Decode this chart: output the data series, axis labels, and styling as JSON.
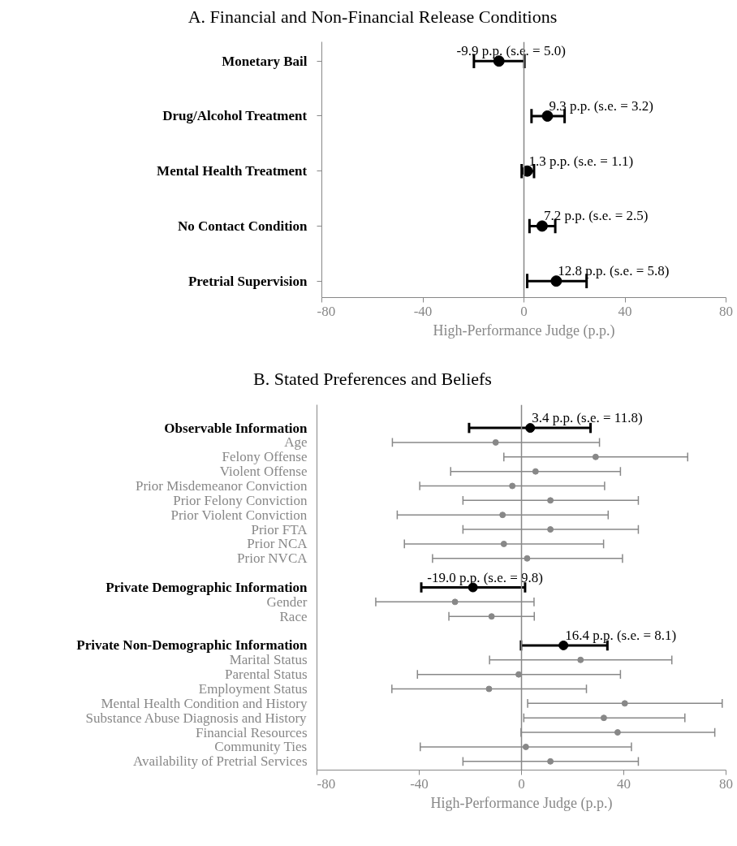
{
  "chart_data": [
    {
      "type": "scatter",
      "title": "A. Financial and Non-Financial Release Conditions",
      "xlabel": "High-Performance Judge (p.p.)",
      "orientation": "horizontal",
      "categories": [
        "Monetary Bail",
        "Drug/Alcohol Treatment",
        "Mental Health Treatment",
        "No Contact Condition",
        "Pretrial Supervision"
      ],
      "xlim": [
        -80,
        80
      ],
      "xticks": [
        -80,
        -40,
        0,
        40,
        80
      ],
      "grid": false,
      "marker": "circle",
      "ref_lines": [
        {
          "axis": "x",
          "value": 0,
          "color": "#888888"
        }
      ],
      "series": [
        {
          "color": "#000000",
          "values": [
            -9.9,
            9.3,
            1.3,
            7.2,
            12.8
          ],
          "errors": [
            [
              -19.8,
              0.2
            ],
            [
              3.0,
              16.1
            ],
            [
              -0.9,
              4.0
            ],
            [
              2.2,
              12.4
            ],
            [
              1.3,
              24.8
            ]
          ],
          "value_labels": [
            "-9.9 p.p. (s.e. = 5.0)",
            "9.3 p.p. (s.e. = 3.2)",
            "1.3 p.p. (s.e. = 1.1)",
            "7.2 p.p. (s.e. = 2.5)",
            "12.8 p.p. (s.e. = 5.8)"
          ]
        }
      ]
    },
    {
      "type": "scatter",
      "title": "B. Stated Preferences and Beliefs",
      "xlabel": "High-Performance Judge (p.p.)",
      "orientation": "horizontal",
      "categories": [
        "Observable Information",
        "Age",
        "Felony Offense",
        "Violent Offense",
        "Prior Misdemeanor Conviction",
        "Prior Felony Conviction",
        "Prior Violent Conviction",
        "Prior FTA",
        "Prior NCA",
        "Prior NVCA",
        null,
        "Private Demographic Information",
        "Gender",
        "Race",
        null,
        "Private Non-Demographic Information",
        "Marital Status",
        "Parental Status",
        "Employment Status",
        "Mental Health Condition and History",
        "Substance Abuse Diagnosis and History",
        "Financial Resources",
        "Community Ties",
        "Availability of Pretrial Services"
      ],
      "xlim": [
        -80,
        80
      ],
      "xticks": [
        -80,
        -40,
        0,
        40,
        80
      ],
      "grid": false,
      "marker": "circle",
      "ref_lines": [
        {
          "axis": "x",
          "value": 0,
          "color": "#888888"
        }
      ],
      "series": [
        {
          "color": "#000000",
          "values": [
            3.4,
            null,
            null,
            null,
            null,
            null,
            null,
            null,
            null,
            null,
            null,
            -19.0,
            null,
            null,
            null,
            16.4,
            null,
            null,
            null,
            null,
            null,
            null,
            null,
            null
          ],
          "errors": [
            [
              -20.5,
              27.0
            ],
            null,
            null,
            null,
            null,
            null,
            null,
            null,
            null,
            null,
            null,
            [
              -39.2,
              1.4
            ],
            null,
            null,
            null,
            [
              -0.2,
              33.6
            ],
            null,
            null,
            null,
            null,
            null,
            null,
            null,
            null
          ],
          "value_labels": [
            "3.4 p.p. (s.e. = 11.8)",
            null,
            null,
            null,
            null,
            null,
            null,
            null,
            null,
            null,
            null,
            "-19.0 p.p. (s.e. = 9.8)",
            null,
            null,
            null,
            "16.4 p.p. (s.e. = 8.1)",
            null,
            null,
            null,
            null,
            null,
            null,
            null,
            null
          ]
        },
        {
          "color": "#888888",
          "values": [
            null,
            -10.1,
            29.0,
            5.5,
            -3.6,
            11.3,
            -7.4,
            11.3,
            -6.9,
            2.2,
            null,
            null,
            -26.0,
            -11.7,
            null,
            null,
            23.1,
            -1.1,
            -12.7,
            40.4,
            32.2,
            37.6,
            1.7,
            11.3
          ],
          "errors": [
            null,
            [
              -50.5,
              30.5
            ],
            [
              -6.9,
              65.0
            ],
            [
              -27.7,
              38.7
            ],
            [
              -39.8,
              32.5
            ],
            [
              -22.9,
              45.7
            ],
            [
              -48.6,
              33.9
            ],
            [
              -22.9,
              45.7
            ],
            [
              -45.8,
              32.1
            ],
            [
              -34.8,
              39.5
            ],
            null,
            null,
            [
              -57.0,
              4.9
            ],
            [
              -28.4,
              5.0
            ],
            null,
            null,
            [
              -12.5,
              58.8
            ],
            [
              -40.7,
              38.7
            ],
            [
              -50.7,
              25.4
            ],
            [
              2.4,
              78.5
            ],
            [
              0.9,
              63.9
            ],
            [
              -0.2,
              75.6
            ],
            [
              -39.6,
              43.0
            ],
            [
              -22.9,
              45.7
            ]
          ]
        }
      ]
    }
  ]
}
